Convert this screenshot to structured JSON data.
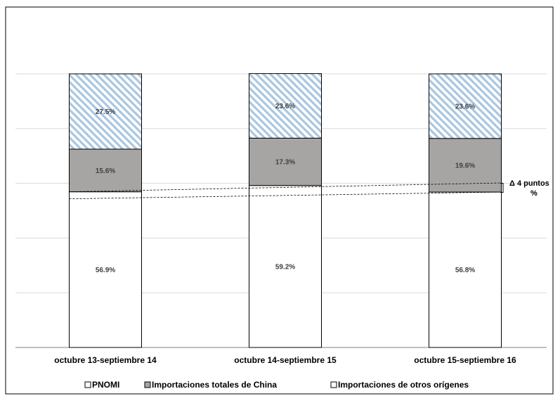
{
  "chart_data": {
    "type": "bar",
    "stacked": true,
    "categories": [
      "octubre 13-septiembre 14",
      "octubre 14-septiembre 15",
      "octubre 15-septiembre 16"
    ],
    "series": [
      {
        "name": "PNOMI",
        "values": [
          56.9,
          59.2,
          56.8
        ],
        "value_labels": [
          "56.9%",
          "59.2%",
          "56.8%"
        ],
        "fill": "#ffffff",
        "pattern": "none"
      },
      {
        "name": "Importaciones totales de China",
        "values": [
          15.6,
          17.3,
          19.6
        ],
        "value_labels": [
          "15.6%",
          "17.3%",
          "19.6%"
        ],
        "fill": "#a7a4a4",
        "pattern": "none"
      },
      {
        "name": "Importaciones de otros orígenes",
        "values": [
          27.5,
          23.6,
          23.6
        ],
        "value_labels": [
          "27.5%",
          "23.6%",
          "23.6%"
        ],
        "fill": "#ffffff",
        "pattern": "diagonal-light-blue"
      }
    ],
    "ylim": [
      0,
      100
    ],
    "grid": true,
    "legend": "bottom",
    "annotation": {
      "line1": "Δ 4 puntos",
      "line2": "%"
    },
    "colors": {
      "hatch": "#a9c6e0",
      "china": "#a7a4a4",
      "border": "#000000",
      "grid": "#d9d9d9"
    }
  }
}
